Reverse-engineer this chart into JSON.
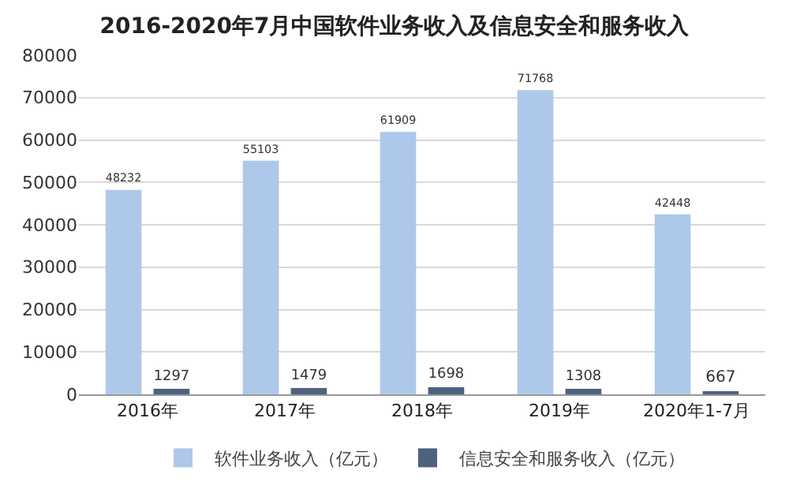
{
  "chart_data": {
    "type": "bar",
    "title": "2016-2020年7月中国软件业务收入及信息安全和服务收入",
    "categories": [
      "2016年",
      "2017年",
      "2018年",
      "2019年",
      "2020年1-7月"
    ],
    "series": [
      {
        "name": "软件业务收入（亿元）",
        "color": "#aec8ea",
        "values": [
          48232,
          55103,
          61909,
          71768,
          42448
        ]
      },
      {
        "name": "信息安全和服务收入（亿元）",
        "color": "#4e6280",
        "values": [
          1297,
          1479,
          1698,
          1308,
          667
        ]
      }
    ],
    "ylim": [
      0,
      80000
    ],
    "yticks": [
      0,
      10000,
      20000,
      30000,
      40000,
      50000,
      60000,
      70000,
      80000
    ],
    "grid": "y",
    "legend": "bottom",
    "data_labels": true
  }
}
